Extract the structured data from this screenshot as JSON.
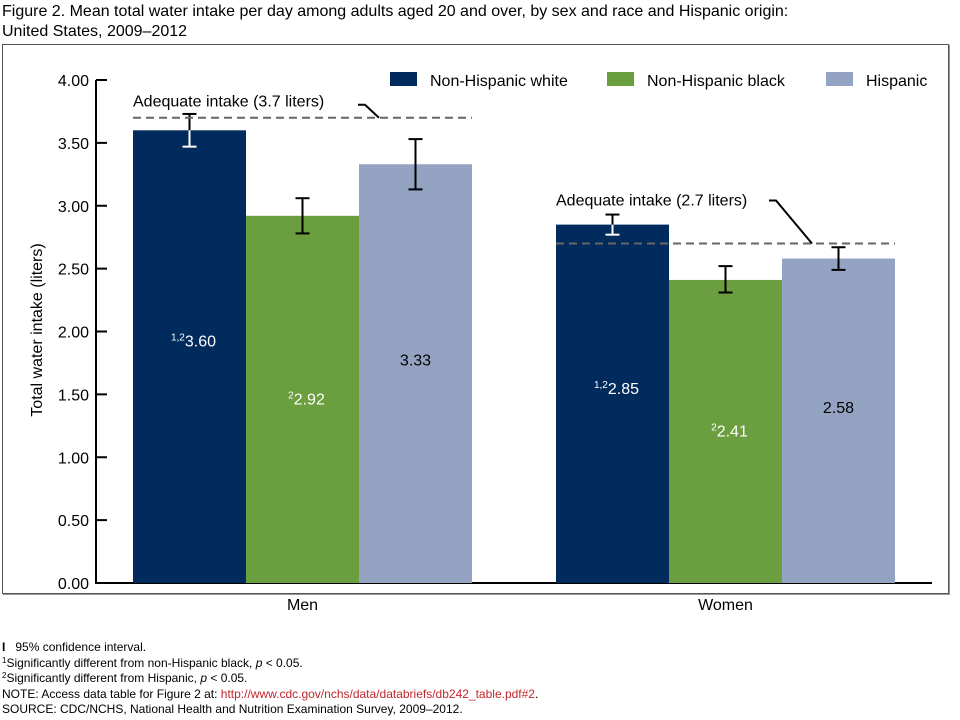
{
  "title_line1": "Figure 2. Mean total water intake per day among adults aged 20 and over, by sex and race and Hispanic origin:",
  "title_line2": "United States, 2009–2012",
  "chart_data": {
    "type": "bar",
    "title": "Mean total water intake per day among adults aged 20 and over, by sex and race and Hispanic origin: United States, 2009–2012",
    "xlabel": "",
    "ylabel": "Total water intake (liters)",
    "ylim": [
      0,
      4
    ],
    "yticks": [
      "0.00",
      "0.50",
      "1.00",
      "1.50",
      "2.00",
      "2.50",
      "3.00",
      "3.50",
      "4.00"
    ],
    "categories": [
      "Men",
      "Women"
    ],
    "legend_position": "top-right",
    "grid": false,
    "series": [
      {
        "name": "Non-Hispanic white",
        "color": "#002b5c",
        "label_color": "#ffffff",
        "values": [
          3.6,
          2.85
        ],
        "labels": [
          "3.60",
          "2.85"
        ],
        "superscripts": [
          "1,2",
          "1,2"
        ],
        "ci_low": [
          3.47,
          2.77
        ],
        "ci_high": [
          3.73,
          2.93
        ],
        "ci_color": "#ffffff"
      },
      {
        "name": "Non-Hispanic black",
        "color": "#6b9e3f",
        "label_color": "#ffffff",
        "values": [
          2.92,
          2.41
        ],
        "labels": [
          "2.92",
          "2.41"
        ],
        "superscripts": [
          "2",
          "2"
        ],
        "ci_low": [
          2.78,
          2.31
        ],
        "ci_high": [
          3.06,
          2.52
        ],
        "ci_color": "#000000"
      },
      {
        "name": "Hispanic",
        "color": "#95a3c3",
        "label_color": "#000000",
        "values": [
          3.33,
          2.58
        ],
        "labels": [
          "3.33",
          "2.58"
        ],
        "superscripts": [
          "",
          ""
        ],
        "ci_low": [
          3.13,
          2.49
        ],
        "ci_high": [
          3.53,
          2.67
        ],
        "ci_color": "#000000"
      }
    ],
    "reference_lines": [
      {
        "category": "Men",
        "value": 3.7,
        "label": "Adequate intake (3.7 liters)"
      },
      {
        "category": "Women",
        "value": 2.7,
        "label": "Adequate intake (2.7 liters)"
      }
    ]
  },
  "footnotes": {
    "ci": "95% confidence interval.",
    "note1_sup": "1",
    "note1_a": "Significantly different from non-Hispanic black, ",
    "note1_p": "p",
    "note1_b": " < 0.05.",
    "note2_sup": "2",
    "note2_a": "Significantly different from Hispanic, ",
    "note2_p": "p",
    "note2_b": " < 0.05.",
    "note_prefix": "NOTE: Access data table for Figure 2 at: ",
    "note_link": "http://www.cdc.gov/nchs/data/databriefs/db242_table.pdf#2",
    "note_suffix": ".",
    "source": "SOURCE: CDC/NCHS, National Health and Nutrition Examination Survey, 2009–2012."
  }
}
